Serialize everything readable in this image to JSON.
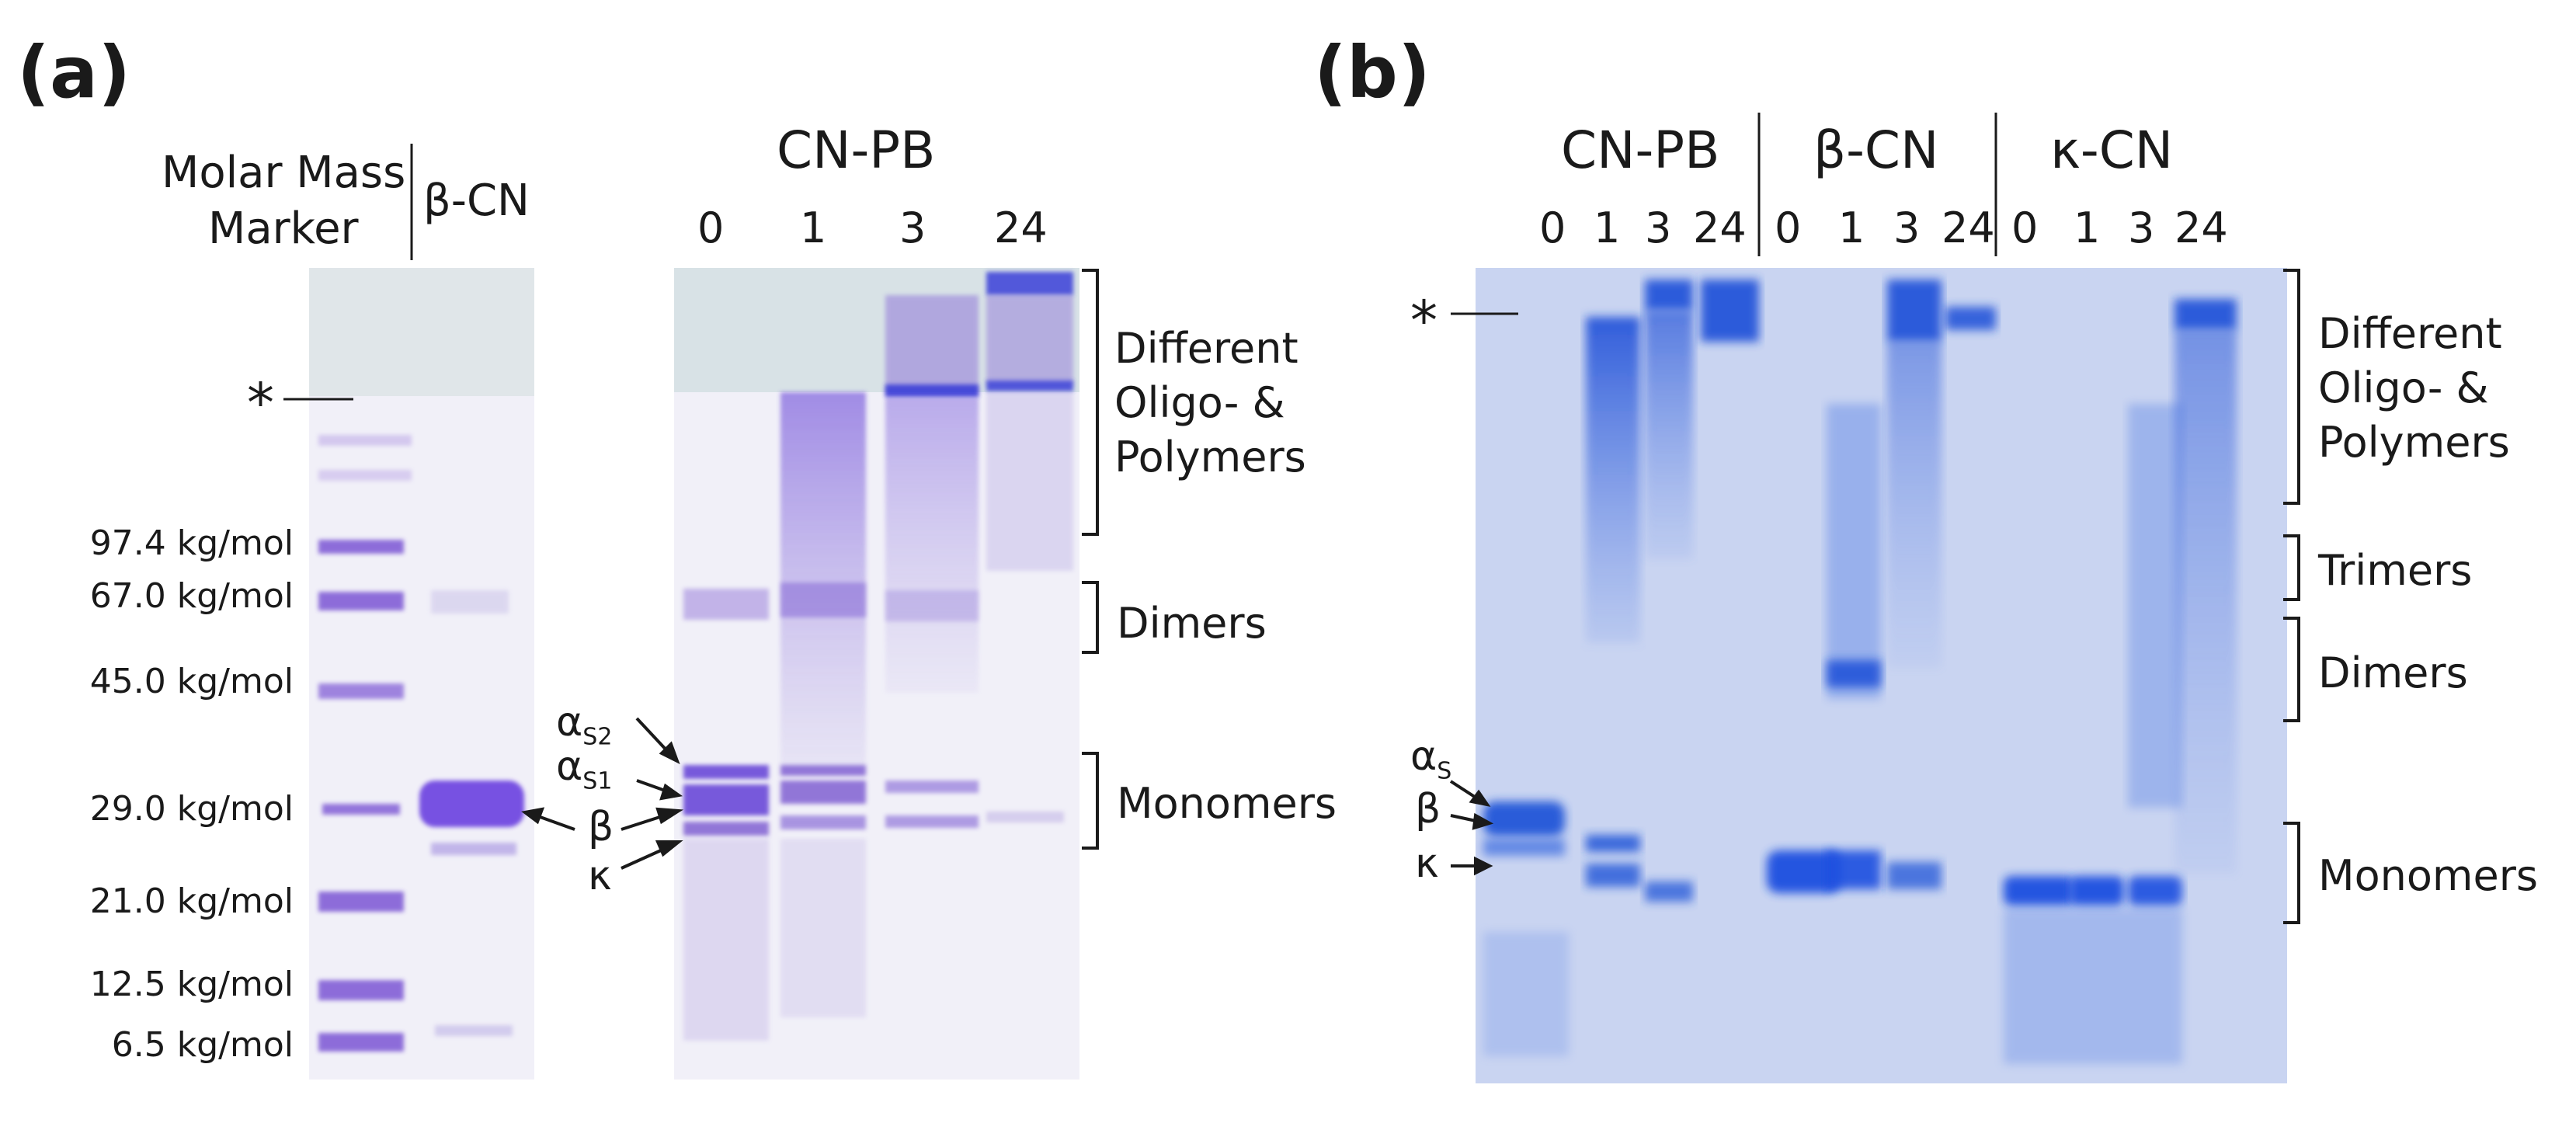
{
  "panels": {
    "a": {
      "label": "(a)",
      "marker_header_line1": "Molar Mass",
      "marker_header_line2": "Marker",
      "beta_cn_header": "β-CN",
      "group_header": "CN-PB",
      "lanes": [
        "0",
        "1",
        "3",
        "24"
      ],
      "star": "*",
      "molar_masses": [
        "97.4 kg/mol",
        "67.0 kg/mol",
        "45.0 kg/mol",
        "29.0 kg/mol",
        "21.0 kg/mol",
        "12.5 kg/mol",
        "6.5 kg/mol"
      ],
      "bands": {
        "as2": "α",
        "as2_sub": "S2",
        "as1": "α",
        "as1_sub": "S1",
        "beta": "β",
        "kappa": "κ"
      },
      "brackets": {
        "polymers": [
          "Different",
          "Oligo- &",
          "Polymers"
        ],
        "dimers": "Dimers",
        "monomers": "Monomers"
      }
    },
    "b": {
      "label": "(b)",
      "groups": [
        "CN-PB",
        "β-CN",
        "κ-CN"
      ],
      "lanes": [
        "0",
        "1",
        "3",
        "24",
        "0",
        "1",
        "3",
        "24",
        "0",
        "1",
        "3",
        "24"
      ],
      "star": "*",
      "bands": {
        "as": "α",
        "as_sub": "S",
        "beta": "β",
        "kappa": "κ"
      },
      "brackets": {
        "polymers": [
          "Different",
          "Oligo- &",
          "Polymers"
        ],
        "trimers": "Trimers",
        "dimers": "Dimers",
        "monomers": "Monomers"
      }
    }
  },
  "colors": {
    "gel_a_bg": "#f1f0f8",
    "gel_a_stain": "#7a58d0",
    "gel_b_bg": "#c9d4f1",
    "gel_b_stain": "#2457d8"
  }
}
